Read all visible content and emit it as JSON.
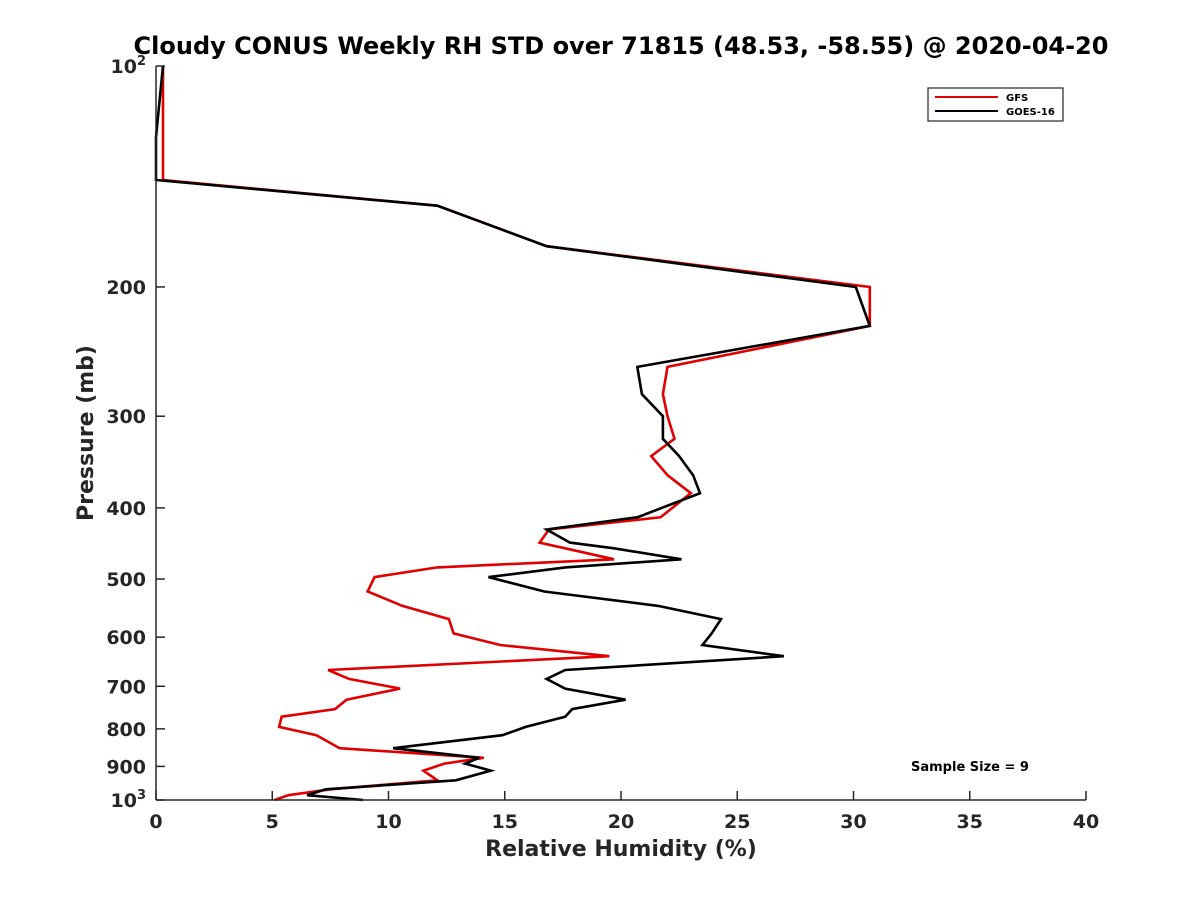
{
  "chart_data": {
    "type": "line",
    "title": "Cloudy CONUS Weekly RH STD over 71815 (48.53, -58.55) @ 2020-04-20",
    "xlabel": "Relative Humidity (%)",
    "ylabel": "Pressure (mb)",
    "xlim": [
      0,
      40
    ],
    "ylim": [
      100,
      1000
    ],
    "y_scale": "log",
    "y_reversed": true,
    "grid": false,
    "legend_position": "top-right",
    "x_ticks": [
      "0",
      "5",
      "10",
      "15",
      "20",
      "25",
      "30",
      "35",
      "40"
    ],
    "y_ticks": [
      {
        "value": 100,
        "base": "10",
        "exp": "2"
      },
      {
        "value": 200,
        "label": "200"
      },
      {
        "value": 300,
        "label": "300"
      },
      {
        "value": 400,
        "label": "400"
      },
      {
        "value": 500,
        "label": "500"
      },
      {
        "value": 600,
        "label": "600"
      },
      {
        "value": 700,
        "label": "700"
      },
      {
        "value": 800,
        "label": "800"
      },
      {
        "value": 900,
        "label": "900"
      },
      {
        "value": 1000,
        "base": "10",
        "exp": "3"
      }
    ],
    "series": [
      {
        "name": "GFS",
        "color": "#e00000",
        "points": [
          [
            0.3,
            100
          ],
          [
            0.3,
            125
          ],
          [
            0.3,
            143
          ],
          [
            12.1,
            155
          ],
          [
            16.8,
            176
          ],
          [
            30.7,
            200
          ],
          [
            30.7,
            226
          ],
          [
            22.0,
            257
          ],
          [
            21.8,
            280
          ],
          [
            22.0,
            300
          ],
          [
            22.3,
            322
          ],
          [
            21.3,
            340
          ],
          [
            22.0,
            361
          ],
          [
            23.0,
            382
          ],
          [
            21.7,
            412
          ],
          [
            16.9,
            428
          ],
          [
            16.5,
            446
          ],
          [
            17.6,
            454
          ],
          [
            19.7,
            470
          ],
          [
            12.1,
            482
          ],
          [
            9.4,
            497
          ],
          [
            9.1,
            520
          ],
          [
            10.6,
            544
          ],
          [
            12.6,
            567
          ],
          [
            12.8,
            593
          ],
          [
            14.8,
            615
          ],
          [
            19.5,
            637
          ],
          [
            7.4,
            665
          ],
          [
            8.3,
            684
          ],
          [
            10.5,
            705
          ],
          [
            8.2,
            730
          ],
          [
            7.7,
            752
          ],
          [
            5.4,
            770
          ],
          [
            5.3,
            795
          ],
          [
            6.9,
            816
          ],
          [
            7.9,
            850
          ],
          [
            14.1,
            876
          ],
          [
            12.4,
            892
          ],
          [
            11.5,
            912
          ],
          [
            12.1,
            940
          ],
          [
            7.5,
            967
          ],
          [
            5.7,
            985
          ],
          [
            5.1,
            1000
          ]
        ]
      },
      {
        "name": "GOES-16",
        "color": "#000000",
        "points": [
          [
            0.3,
            100
          ],
          [
            0.0,
            125
          ],
          [
            0.0,
            143
          ],
          [
            12.1,
            155
          ],
          [
            16.8,
            176
          ],
          [
            30.1,
            200
          ],
          [
            30.7,
            226
          ],
          [
            20.7,
            257
          ],
          [
            20.9,
            280
          ],
          [
            21.8,
            300
          ],
          [
            21.8,
            322
          ],
          [
            22.5,
            340
          ],
          [
            23.1,
            361
          ],
          [
            23.4,
            382
          ],
          [
            20.7,
            412
          ],
          [
            16.8,
            428
          ],
          [
            17.8,
            446
          ],
          [
            19.7,
            454
          ],
          [
            22.6,
            470
          ],
          [
            17.6,
            482
          ],
          [
            14.3,
            497
          ],
          [
            16.7,
            520
          ],
          [
            21.6,
            544
          ],
          [
            24.3,
            567
          ],
          [
            23.9,
            593
          ],
          [
            23.5,
            615
          ],
          [
            27.0,
            637
          ],
          [
            17.6,
            665
          ],
          [
            16.8,
            684
          ],
          [
            17.6,
            705
          ],
          [
            20.2,
            730
          ],
          [
            17.9,
            752
          ],
          [
            17.6,
            770
          ],
          [
            15.9,
            795
          ],
          [
            14.9,
            816
          ],
          [
            10.2,
            850
          ],
          [
            13.9,
            876
          ],
          [
            13.3,
            892
          ],
          [
            14.4,
            912
          ],
          [
            12.9,
            940
          ],
          [
            7.3,
            967
          ],
          [
            6.5,
            985
          ],
          [
            8.9,
            1000
          ]
        ]
      }
    ],
    "annotation": "Sample Size = 9"
  }
}
